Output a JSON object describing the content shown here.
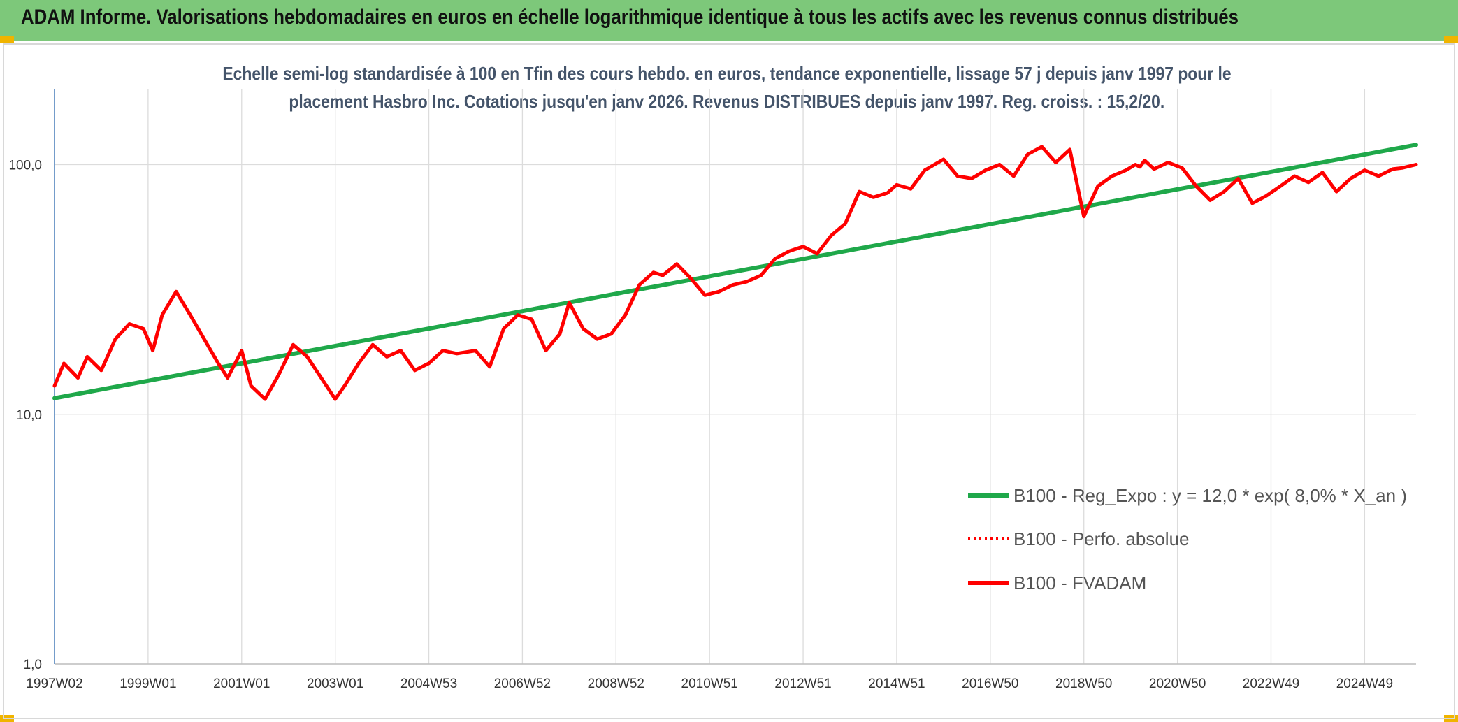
{
  "header": {
    "title": "ADAM Informe. Valorisations hebdomadaires en euros en échelle logarithmique identique à tous les actifs avec les revenus connus distribués"
  },
  "chart_data": {
    "type": "line",
    "title_line1": "Echelle semi-log standardisée à 100 en Tfin des cours hebdo. en euros, tendance exponentielle, lissage 57 j depuis janv 1997 pour le",
    "title_line2": "placement Hasbro Inc. Cotations jusqu'en janv 2026. Revenus DISTRIBUES depuis janv 1997. Reg. croiss. : 15,2/20.",
    "y_scale": "log",
    "ylim": [
      1,
      200
    ],
    "y_ticks": [
      1,
      10,
      100
    ],
    "y_tick_labels": [
      "1,0",
      "10,0",
      "100,0"
    ],
    "xlim": [
      1997.0,
      2026.1
    ],
    "x_ticks": [
      1997.0,
      1999.0,
      2001.0,
      2003.0,
      2005.0,
      2007.0,
      2009.0,
      2011.0,
      2013.0,
      2015.0,
      2017.0,
      2019.0,
      2021.0,
      2023.0,
      2025.0
    ],
    "x_tick_labels": [
      "1997W02",
      "1999W01",
      "2001W01",
      "2003W01",
      "2004W53",
      "2006W52",
      "2008W52",
      "2010W51",
      "2012W51",
      "2014W51",
      "2016W50",
      "2018W50",
      "2020W50",
      "2022W49",
      "2024W49"
    ],
    "grid": true,
    "legend_position": "bottom-right",
    "series": [
      {
        "name": "B100 - Reg_Expo : y = 12,0 * exp( 8,0% *  X_an )",
        "color": "#1fa84a",
        "style": "solid",
        "x": [
          1997.0,
          2026.1
        ],
        "y": [
          11.6,
          120.0
        ]
      },
      {
        "name": "B100 - Perfo. absolue",
        "color": "#ff0000",
        "style": "dotted",
        "x": [],
        "y": []
      },
      {
        "name": "B100 - FVADAM",
        "color": "#ff0000",
        "style": "solid",
        "x": [
          1997.0,
          1997.2,
          1997.5,
          1997.7,
          1998.0,
          1998.3,
          1998.6,
          1998.9,
          1999.1,
          1999.3,
          1999.6,
          1999.9,
          2000.2,
          2000.5,
          2000.7,
          2001.0,
          2001.2,
          2001.5,
          2001.8,
          2002.1,
          2002.4,
          2002.7,
          2003.0,
          2003.2,
          2003.5,
          2003.8,
          2004.1,
          2004.4,
          2004.7,
          2005.0,
          2005.3,
          2005.6,
          2006.0,
          2006.3,
          2006.6,
          2006.9,
          2007.2,
          2007.5,
          2007.8,
          2008.0,
          2008.3,
          2008.6,
          2008.9,
          2009.2,
          2009.5,
          2009.8,
          2010.0,
          2010.3,
          2010.6,
          2010.9,
          2011.2,
          2011.5,
          2011.8,
          2012.1,
          2012.4,
          2012.7,
          2013.0,
          2013.3,
          2013.6,
          2013.9,
          2014.2,
          2014.5,
          2014.8,
          2015.0,
          2015.3,
          2015.6,
          2016.0,
          2016.3,
          2016.6,
          2016.9,
          2017.2,
          2017.5,
          2017.8,
          2018.1,
          2018.4,
          2018.7,
          2019.0,
          2019.3,
          2019.6,
          2019.9,
          2020.1,
          2020.2,
          2020.3,
          2020.5,
          2020.8,
          2021.1,
          2021.4,
          2021.7,
          2022.0,
          2022.3,
          2022.6,
          2022.9,
          2023.2,
          2023.5,
          2023.8,
          2024.1,
          2024.4,
          2024.7,
          2025.0,
          2025.3,
          2025.6,
          2025.8,
          2026.1
        ],
        "y": [
          13.0,
          16.0,
          14.0,
          17.0,
          15.0,
          20.0,
          23.0,
          22.0,
          18.0,
          25.0,
          31.0,
          25.0,
          20.0,
          16.0,
          14.0,
          18.0,
          13.0,
          11.5,
          14.5,
          19.0,
          17.0,
          14.0,
          11.5,
          13.0,
          16.0,
          19.0,
          17.0,
          18.0,
          15.0,
          16.0,
          18.0,
          17.5,
          18.0,
          15.5,
          22.0,
          25.0,
          24.0,
          18.0,
          21.0,
          28.0,
          22.0,
          20.0,
          21.0,
          25.0,
          33.0,
          37.0,
          36.0,
          40.0,
          35.0,
          30.0,
          31.0,
          33.0,
          34.0,
          36.0,
          42.0,
          45.0,
          47.0,
          44.0,
          52.0,
          58.0,
          78.0,
          74.0,
          77.0,
          83.0,
          80.0,
          95.0,
          105.0,
          90.0,
          88.0,
          95.0,
          100.0,
          90.0,
          110.0,
          118.0,
          102.0,
          115.0,
          62.0,
          82.0,
          90.0,
          95.0,
          100.0,
          98.0,
          104.0,
          96.0,
          102.0,
          97.0,
          82.0,
          72.0,
          78.0,
          88.0,
          70.0,
          75.0,
          82.0,
          90.0,
          85.0,
          93.0,
          78.0,
          88.0,
          95.0,
          90.0,
          96.0,
          97.0,
          100.0
        ]
      }
    ]
  }
}
